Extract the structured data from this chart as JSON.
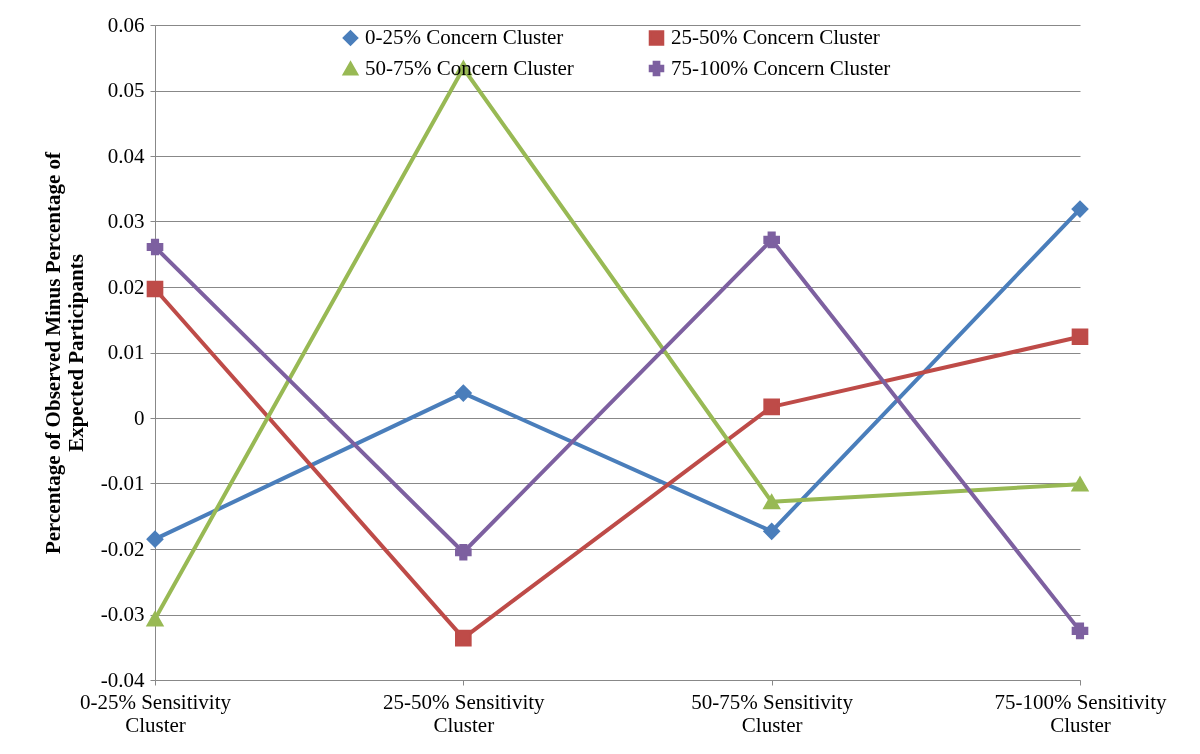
{
  "chart_data": {
    "type": "line",
    "ylabel": "Percentage of Observed Minus Percentage of Expected Participants",
    "categories": [
      "0-25% Sensitivity Cluster",
      "25-50% Sensitivity Cluster",
      "50-75% Sensitivity Cluster",
      "75-100% Sensitivity Cluster"
    ],
    "series": [
      {
        "name": "0-25% Concern Cluster",
        "color": "#4a7ebb",
        "marker": "diamond",
        "values": [
          -0.0185,
          0.0038,
          -0.0173,
          0.0319
        ]
      },
      {
        "name": "25-50% Concern Cluster",
        "color": "#be4b48",
        "marker": "square",
        "values": [
          0.0197,
          -0.0336,
          0.0017,
          0.0124
        ]
      },
      {
        "name": "50-75% Concern Cluster",
        "color": "#98b954",
        "marker": "triangle",
        "values": [
          -0.0307,
          0.0534,
          -0.0128,
          -0.0101
        ]
      },
      {
        "name": "75-100% Concern Cluster",
        "color": "#7d60a0",
        "marker": "cross",
        "values": [
          0.0261,
          -0.0205,
          0.0272,
          -0.0325
        ]
      }
    ],
    "ylim": [
      -0.04,
      0.06
    ],
    "yticks": [
      -0.04,
      -0.03,
      -0.02,
      -0.01,
      0,
      0.01,
      0.02,
      0.03,
      0.04,
      0.05,
      0.06
    ],
    "grid": "y",
    "legend": "top",
    "line_style": "solid"
  }
}
